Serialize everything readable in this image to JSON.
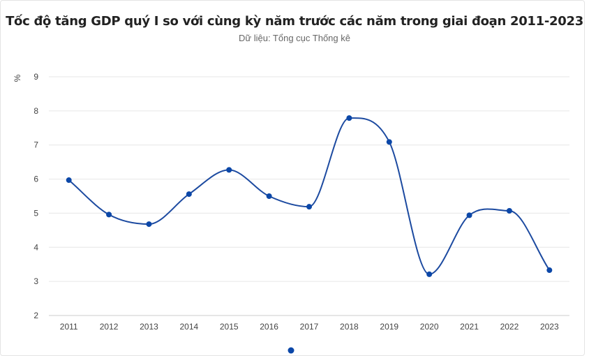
{
  "chart_data": {
    "type": "line",
    "title": "Tốc độ tăng GDP quý I so với cùng kỳ năm trước các năm trong giai đoạn 2011-2023",
    "subtitle": "Dữ liệu: Tổng cục Thống kê",
    "ylabel": "%",
    "xlabel": "",
    "ylim": [
      2,
      9
    ],
    "yticks": [
      "2",
      "3",
      "4",
      "5",
      "6",
      "7",
      "8",
      "9"
    ],
    "categories": [
      "2011",
      "2012",
      "2013",
      "2014",
      "2015",
      "2016",
      "2017",
      "2018",
      "2019",
      "2020",
      "2021",
      "2022",
      "2023"
    ],
    "series": [
      {
        "values": [
          5.97,
          4.96,
          4.68,
          5.56,
          6.27,
          5.5,
          5.19,
          7.79,
          7.09,
          3.21,
          4.94,
          5.07,
          3.33
        ]
      }
    ],
    "grid": true,
    "legend": "bottom",
    "line_color": "#1c4aa0",
    "marker_color": "#0b47a8"
  }
}
